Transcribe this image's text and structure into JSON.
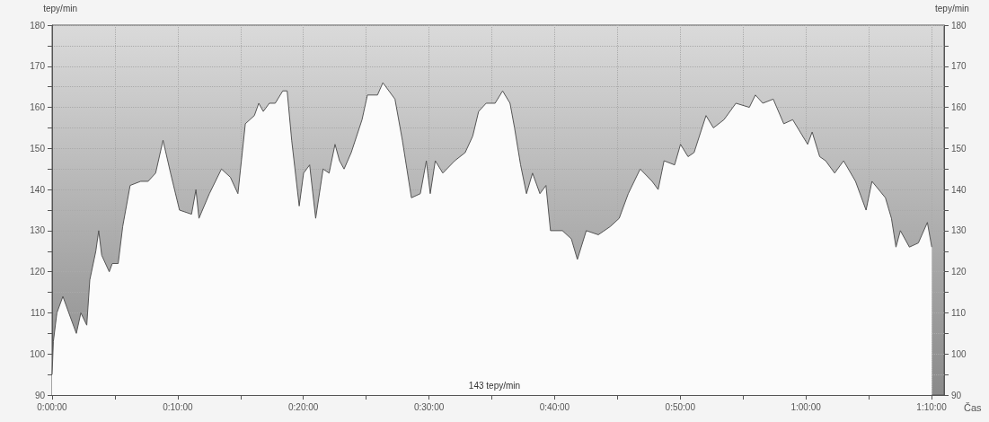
{
  "chart_data": {
    "type": "area",
    "xlabel": "Čas",
    "ylabel": "tepy/min",
    "y2label": "tepy/min",
    "annotations": [
      "143 tepy/min"
    ],
    "x": [
      0,
      0.1,
      0.38,
      0.86,
      1.45,
      1.93,
      2.29,
      2.76,
      3.0,
      3.48,
      3.71,
      3.95,
      4.55,
      4.79,
      5.26,
      5.62,
      6.21,
      7.05,
      7.64,
      8.24,
      8.83,
      9.43,
      10.14,
      11.1,
      11.45,
      11.69,
      12.52,
      13.48,
      14.19,
      14.79,
      15.38,
      16.1,
      16.45,
      16.81,
      17.29,
      17.76,
      18.36,
      18.71,
      19.07,
      19.67,
      20.02,
      20.5,
      20.98,
      21.57,
      22.05,
      22.52,
      22.88,
      23.24,
      23.81,
      24.67,
      25.1,
      25.9,
      26.33,
      27.29,
      27.88,
      28.24,
      28.6,
      29.31,
      29.79,
      30.1,
      30.5,
      31.1,
      32.05,
      32.88,
      33.48,
      33.95,
      34.55,
      35.26,
      35.86,
      36.45,
      36.81,
      37.29,
      37.76,
      38.24,
      38.83,
      39.31,
      39.67,
      40.62,
      41.33,
      41.81,
      42.52,
      43.48,
      44.43,
      45.14,
      45.86,
      46.81,
      47.76,
      48.24,
      48.71,
      49.55,
      50.02,
      50.62,
      51.1,
      52.05,
      52.64,
      53.48,
      54.43,
      55.5,
      55.98,
      56.57,
      57.4,
      58.24,
      58.95,
      60.14,
      60.5,
      61.1,
      61.57,
      62.29,
      63.0,
      63.95,
      64.79,
      65.26,
      66.33,
      66.81,
      67.17,
      67.52,
      68.24,
      68.95,
      69.67,
      70.02
    ],
    "series": [
      {
        "color": "#fbfbfb",
        "values": [
          95,
          103,
          110,
          114,
          109,
          105,
          110,
          107,
          118,
          125,
          130,
          124,
          120,
          122,
          122,
          131,
          141,
          142,
          142,
          144,
          152,
          144,
          135,
          134,
          140,
          133,
          139,
          145,
          143,
          139,
          156,
          158,
          161,
          159,
          161,
          161,
          164,
          164,
          152,
          136,
          144,
          146,
          133,
          145,
          144,
          151,
          147,
          145,
          149,
          157,
          163,
          163,
          166,
          162,
          152,
          145,
          138,
          139,
          147,
          139,
          147,
          144,
          147,
          149,
          153,
          159,
          161,
          161,
          164,
          161,
          155,
          146,
          139,
          144,
          139,
          141,
          130,
          130,
          128,
          123,
          130,
          129,
          131,
          133,
          139,
          145,
          142,
          140,
          147,
          146,
          151,
          148,
          149,
          158,
          155,
          157,
          161,
          160,
          163,
          161,
          162,
          156,
          157,
          151,
          154,
          148,
          147,
          144,
          147,
          142,
          135,
          142,
          138,
          133,
          126,
          130,
          126,
          127,
          132,
          126
        ]
      }
    ],
    "xlim": [
      0,
      71
    ],
    "xticks": [
      {
        "value": 0,
        "label": "0:00:00"
      },
      {
        "value": 5,
        "label": null
      },
      {
        "value": 10,
        "label": "0:10:00"
      },
      {
        "value": 15,
        "label": null
      },
      {
        "value": 20,
        "label": "0:20:00"
      },
      {
        "value": 25,
        "label": null
      },
      {
        "value": 30,
        "label": "0:30:00"
      },
      {
        "value": 35,
        "label": null
      },
      {
        "value": 40,
        "label": "0:40:00"
      },
      {
        "value": 45,
        "label": null
      },
      {
        "value": 50,
        "label": "0:50:00"
      },
      {
        "value": 55,
        "label": null
      },
      {
        "value": 60,
        "label": "1:00:00"
      },
      {
        "value": 65,
        "label": null
      },
      {
        "value": 70,
        "label": "1:10:00"
      }
    ],
    "ylim": [
      90,
      180
    ],
    "yticks": [
      90,
      {
        "value": 95,
        "label": null
      },
      100,
      {
        "value": 105,
        "label": null
      },
      110,
      {
        "value": 115,
        "label": null
      },
      120,
      {
        "value": 125,
        "label": null
      },
      130,
      {
        "value": 135,
        "label": null
      },
      140,
      {
        "value": 145,
        "label": null
      },
      150,
      {
        "value": 155,
        "label": null
      },
      160,
      {
        "value": 165,
        "label": null
      },
      170,
      {
        "value": 175,
        "label": null
      },
      180
    ],
    "y2lim": [
      90,
      180
    ],
    "y2ticks": [
      90,
      {
        "value": 95,
        "label": null
      },
      100,
      {
        "value": 105,
        "label": null
      },
      110,
      {
        "value": 115,
        "label": null
      },
      120,
      {
        "value": 125,
        "label": null
      },
      130,
      {
        "value": 135,
        "label": null
      },
      140,
      {
        "value": 145,
        "label": null
      },
      150,
      {
        "value": 155,
        "label": null
      },
      160,
      {
        "value": 165,
        "label": null
      },
      170,
      {
        "value": 175,
        "label": null
      },
      180
    ],
    "grid": true,
    "line_style": "solid",
    "marker": "none"
  }
}
